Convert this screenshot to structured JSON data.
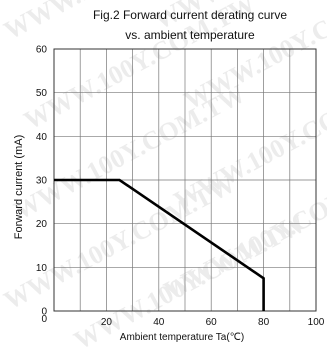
{
  "chart_data": {
    "type": "line",
    "title": "Fig.2  Forward current derating curve",
    "subtitle": "vs. ambient temperature",
    "xlabel": "Ambient temperature Ta(℃)",
    "ylabel": "Forward current (mA)",
    "xlim": [
      0,
      100
    ],
    "ylim": [
      0,
      60
    ],
    "x_ticks": [
      20,
      40,
      60,
      80,
      100
    ],
    "y_ticks": [
      0,
      10,
      20,
      30,
      40,
      50,
      60
    ],
    "origin_label": "0",
    "grid": true,
    "series": [
      {
        "x": [
          0,
          25,
          80,
          80
        ],
        "y": [
          30,
          30,
          7.5,
          0
        ]
      }
    ],
    "colors": {
      "line": "#000000",
      "grid": "#777777",
      "background": "#ffffff"
    }
  },
  "watermark": {
    "text": "WWW.100Y.COM.TW"
  }
}
